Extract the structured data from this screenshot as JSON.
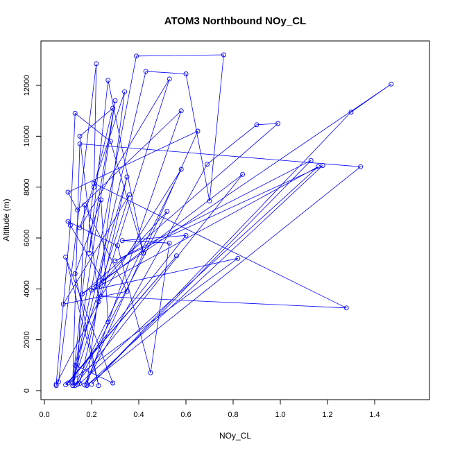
{
  "chart_data": {
    "type": "line",
    "title": "ATOM3 Northbound NOy_CL",
    "xlabel": "NOy_CL",
    "ylabel": "Altitude (m)",
    "xlim": [
      0.0,
      1.5
    ],
    "ylim": [
      0,
      13500
    ],
    "x_ticks": [
      "0.0",
      "0.2",
      "0.4",
      "0.6",
      "0.8",
      "1.0",
      "1.2",
      "1.4"
    ],
    "y_ticks": [
      "0",
      "2000",
      "4000",
      "6000",
      "8000",
      "10000",
      "12000"
    ],
    "grid": false,
    "legend": "none",
    "series_color": "#0000ff",
    "series": [
      {
        "values": [
          [
            0.05,
            200
          ],
          [
            0.06,
            350
          ],
          [
            0.22,
            12850
          ],
          [
            0.21,
            8000
          ],
          [
            0.29,
            11100
          ],
          [
            0.15,
            10000
          ],
          [
            0.23,
            3500
          ],
          [
            0.05,
            250
          ],
          [
            0.11,
            6500
          ],
          [
            0.13,
            10900
          ],
          [
            0.28,
            9800
          ],
          [
            0.42,
            5400
          ],
          [
            0.27,
            12200
          ],
          [
            0.19,
            5400
          ],
          [
            0.3,
            11400
          ],
          [
            0.12,
            200
          ],
          [
            0.39,
            13150
          ],
          [
            0.76,
            13200
          ],
          [
            0.7,
            7450
          ],
          [
            0.6,
            12450
          ],
          [
            0.43,
            12550
          ],
          [
            0.12,
            200
          ],
          [
            0.53,
            12250
          ],
          [
            0.15,
            6400
          ],
          [
            0.34,
            11750
          ],
          [
            0.18,
            250
          ],
          [
            0.58,
            11000
          ],
          [
            0.14,
            7100
          ],
          [
            0.1,
            7800
          ],
          [
            0.65,
            10200
          ],
          [
            0.17,
            220
          ],
          [
            0.69,
            8900
          ],
          [
            0.9,
            10450
          ],
          [
            0.99,
            10500
          ],
          [
            0.16,
            3800
          ],
          [
            1.47,
            12050
          ],
          [
            1.3,
            10950
          ],
          [
            0.2,
            250
          ],
          [
            1.13,
            9050
          ],
          [
            0.3,
            5100
          ],
          [
            1.18,
            8850
          ],
          [
            0.18,
            200
          ],
          [
            1.34,
            8800
          ],
          [
            0.15,
            9700
          ],
          [
            0.12,
            300
          ],
          [
            0.21,
            8150
          ],
          [
            1.28,
            3250
          ],
          [
            0.24,
            3700
          ],
          [
            0.58,
            8700
          ],
          [
            0.13,
            200
          ],
          [
            0.84,
            8500
          ],
          [
            0.22,
            4100
          ],
          [
            0.35,
            8400
          ],
          [
            0.15,
            280
          ],
          [
            1.16,
            8800
          ],
          [
            0.2,
            3950
          ],
          [
            0.82,
            5200
          ],
          [
            0.09,
            230
          ],
          [
            0.56,
            5300
          ],
          [
            0.1,
            300
          ],
          [
            0.6,
            6100
          ],
          [
            0.33,
            5900
          ],
          [
            0.53,
            5800
          ],
          [
            0.45,
            700
          ],
          [
            0.31,
            5700
          ],
          [
            0.1,
            6650
          ],
          [
            0.25,
            4300
          ],
          [
            0.52,
            7050
          ],
          [
            0.14,
            250
          ],
          [
            0.17,
            7300
          ],
          [
            0.35,
            3900
          ],
          [
            0.08,
            3400
          ],
          [
            0.36,
            7700
          ],
          [
            0.13,
            1000
          ],
          [
            0.29,
            300
          ],
          [
            0.09,
            5250
          ],
          [
            0.23,
            200
          ],
          [
            0.13,
            4600
          ],
          [
            0.24,
            7500
          ],
          [
            0.27,
            2700
          ]
        ]
      }
    ]
  }
}
